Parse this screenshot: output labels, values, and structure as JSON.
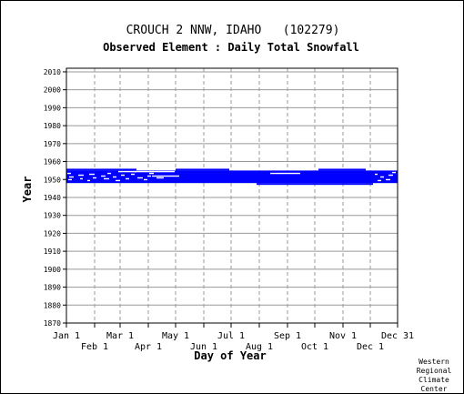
{
  "chart_data": {
    "type": "heatmap",
    "title": "CROUCH 2 NNW, IDAHO   (102279)",
    "subtitle": "Observed Element : Daily Total Snowfall",
    "xlabel": "Day of Year",
    "ylabel": "Year",
    "xlim": [
      1,
      365
    ],
    "ylim": [
      1870,
      2012
    ],
    "x_ticks_top": [
      {
        "label": "Jan 1",
        "day": 1
      },
      {
        "label": "Mar 1",
        "day": 60
      },
      {
        "label": "May 1",
        "day": 121
      },
      {
        "label": "Jul 1",
        "day": 182
      },
      {
        "label": "Sep 1",
        "day": 244
      },
      {
        "label": "Nov 1",
        "day": 305
      },
      {
        "label": "Dec 31",
        "day": 365
      }
    ],
    "x_ticks_bottom": [
      {
        "label": "Feb 1",
        "day": 32
      },
      {
        "label": "Apr 1",
        "day": 91
      },
      {
        "label": "Jun 1",
        "day": 152
      },
      {
        "label": "Aug 1",
        "day": 213
      },
      {
        "label": "Oct 1",
        "day": 274
      },
      {
        "label": "Dec 1",
        "day": 335
      }
    ],
    "y_ticks": [
      1870,
      1880,
      1890,
      1900,
      1910,
      1920,
      1930,
      1940,
      1950,
      1960,
      1970,
      1980,
      1990,
      2000,
      2010
    ],
    "grid": true,
    "color_observed": "#0000ff",
    "observation_bands": [
      {
        "start_year": 1948,
        "end_year": 1955,
        "start_day": 1,
        "end_day": 365
      },
      {
        "start_year": 1955,
        "end_year": 1956,
        "start_day": 1,
        "end_day": 78
      },
      {
        "start_year": 1955,
        "end_year": 1956,
        "start_day": 121,
        "end_day": 180
      },
      {
        "start_year": 1947,
        "end_year": 1948,
        "start_day": 210,
        "end_day": 338
      },
      {
        "start_year": 1955,
        "end_year": 1956,
        "start_day": 278,
        "end_day": 330
      }
    ],
    "missing_marks": [
      {
        "year": 1953.5,
        "start_day": 2,
        "end_day": 6
      },
      {
        "year": 1951.5,
        "start_day": 4,
        "end_day": 9
      },
      {
        "year": 1950.0,
        "start_day": 3,
        "end_day": 7
      },
      {
        "year": 1952.5,
        "start_day": 14,
        "end_day": 20
      },
      {
        "year": 1950.5,
        "start_day": 16,
        "end_day": 19
      },
      {
        "year": 1953.0,
        "start_day": 26,
        "end_day": 32
      },
      {
        "year": 1951.0,
        "start_day": 30,
        "end_day": 34
      },
      {
        "year": 1949.5,
        "start_day": 24,
        "end_day": 27
      },
      {
        "year": 1952.0,
        "start_day": 39,
        "end_day": 44
      },
      {
        "year": 1950.5,
        "start_day": 42,
        "end_day": 48
      },
      {
        "year": 1953.5,
        "start_day": 46,
        "end_day": 50
      },
      {
        "year": 1951.5,
        "start_day": 52,
        "end_day": 56
      },
      {
        "year": 1949.5,
        "start_day": 55,
        "end_day": 60
      },
      {
        "year": 1952.5,
        "start_day": 61,
        "end_day": 65
      },
      {
        "year": 1954.5,
        "start_day": 58,
        "end_day": 78
      },
      {
        "year": 1950.5,
        "start_day": 66,
        "end_day": 70
      },
      {
        "year": 1953.0,
        "start_day": 72,
        "end_day": 76
      },
      {
        "year": 1951.0,
        "start_day": 79,
        "end_day": 85
      },
      {
        "year": 1952.0,
        "start_day": 90,
        "end_day": 94
      },
      {
        "year": 1950.0,
        "start_day": 86,
        "end_day": 90
      },
      {
        "year": 1953.5,
        "start_day": 92,
        "end_day": 97
      },
      {
        "year": 1952.0,
        "start_day": 95,
        "end_day": 125
      },
      {
        "year": 1951.0,
        "start_day": 100,
        "end_day": 108
      },
      {
        "year": 1954.5,
        "start_day": 76,
        "end_day": 120
      },
      {
        "year": 1953.5,
        "start_day": 225,
        "end_day": 258
      },
      {
        "year": 1953.0,
        "start_day": 340,
        "end_day": 343
      },
      {
        "year": 1951.5,
        "start_day": 346,
        "end_day": 350
      },
      {
        "year": 1950.0,
        "start_day": 352,
        "end_day": 357
      },
      {
        "year": 1952.5,
        "start_day": 355,
        "end_day": 360
      },
      {
        "year": 1949.5,
        "start_day": 343,
        "end_day": 347
      },
      {
        "year": 1954.0,
        "start_day": 359,
        "end_day": 363
      }
    ]
  },
  "credit": [
    "Western",
    "Regional",
    "Climate",
    "Center"
  ]
}
